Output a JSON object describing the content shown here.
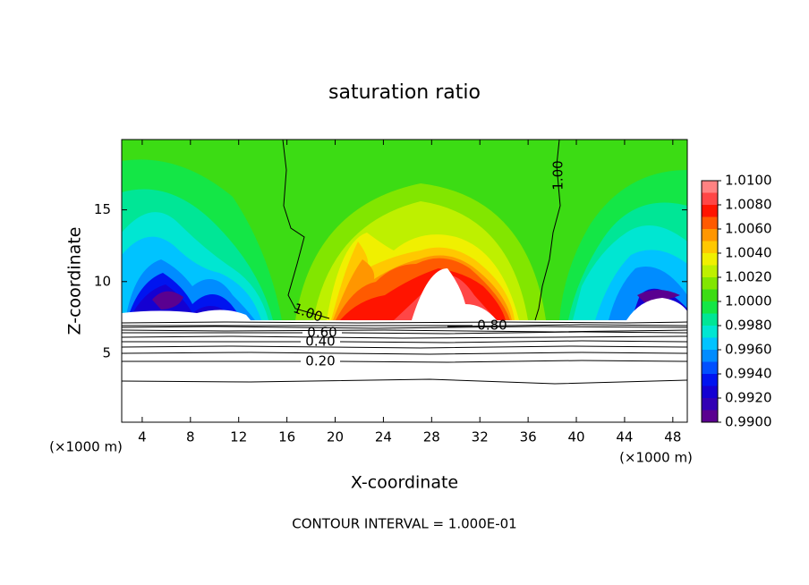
{
  "chart_data": {
    "type": "contour",
    "title": "saturation ratio",
    "xlabel": "X-coordinate",
    "ylabel": "Z-coordinate",
    "xunit": "(×1000 m)",
    "footer": "CONTOUR INTERVAL = 1.000E-01",
    "xlim": [
      2.3,
      49.2
    ],
    "xticks": [
      4,
      8,
      12,
      16,
      20,
      24,
      28,
      32,
      36,
      40,
      44,
      48
    ],
    "ylim": [
      0.2,
      19.9
    ],
    "yticks": [
      5,
      10,
      15
    ],
    "levels": [
      0.99,
      0.991,
      0.992,
      0.993,
      0.994,
      0.995,
      0.996,
      0.997,
      0.998,
      0.999,
      1.0,
      1.001,
      1.002,
      1.003,
      1.004,
      1.005,
      1.006,
      1.007,
      1.008,
      1.009,
      1.01
    ],
    "colors": [
      "#5a0090",
      "#3200b4",
      "#1400d2",
      "#0014f0",
      "#0050ff",
      "#008cff",
      "#00c3ff",
      "#00e6d2",
      "#00e696",
      "#14e646",
      "#3cdc14",
      "#82e600",
      "#bef000",
      "#f0f000",
      "#ffc800",
      "#ff9600",
      "#ff5a00",
      "#ff1400",
      "#ff4646",
      "#ff8282"
    ],
    "colorbar_ticks": [
      {
        "value": 0.99,
        "label": "0.9900"
      },
      {
        "value": 0.992,
        "label": "0.9920"
      },
      {
        "value": 0.994,
        "label": "0.9940"
      },
      {
        "value": 0.996,
        "label": "0.9960"
      },
      {
        "value": 0.998,
        "label": "0.9980"
      },
      {
        "value": 1.0,
        "label": "1.0000"
      },
      {
        "value": 1.002,
        "label": "1.0020"
      },
      {
        "value": 1.004,
        "label": "1.0040"
      },
      {
        "value": 1.006,
        "label": "1.0060"
      },
      {
        "value": 1.008,
        "label": "1.0080"
      },
      {
        "value": 1.01,
        "label": "1.0100"
      }
    ],
    "contours": [
      {
        "value": 1.0,
        "label": "1.00"
      },
      {
        "value": 0.8,
        "label": "0.80"
      },
      {
        "value": 0.6,
        "label": "0.60"
      },
      {
        "value": 0.4,
        "label": "0.40"
      },
      {
        "value": 0.2,
        "label": "0.20"
      }
    ]
  }
}
